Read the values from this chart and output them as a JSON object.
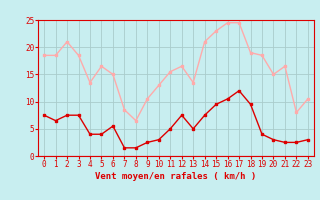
{
  "hours": [
    0,
    1,
    2,
    3,
    4,
    5,
    6,
    7,
    8,
    9,
    10,
    11,
    12,
    13,
    14,
    15,
    16,
    17,
    18,
    19,
    20,
    21,
    22,
    23
  ],
  "wind_avg": [
    7.5,
    6.5,
    7.5,
    7.5,
    4,
    4,
    5.5,
    1.5,
    1.5,
    2.5,
    3,
    5,
    7.5,
    5,
    7.5,
    9.5,
    10.5,
    12,
    9.5,
    4,
    3,
    2.5,
    2.5,
    3
  ],
  "wind_gust": [
    18.5,
    18.5,
    21,
    18.5,
    13.5,
    16.5,
    15,
    8.5,
    6.5,
    10.5,
    13,
    15.5,
    16.5,
    13.5,
    21,
    23,
    24.5,
    24.5,
    19,
    18.5,
    15,
    16.5,
    8,
    10.5
  ],
  "avg_color": "#dd0000",
  "gust_color": "#ffaaaa",
  "bg_color": "#c8eef0",
  "grid_color": "#aacccc",
  "xlabel": "Vent moyen/en rafales ( km/h )",
  "ylim": [
    0,
    25
  ],
  "yticks": [
    0,
    5,
    10,
    15,
    20,
    25
  ],
  "xticks": [
    0,
    1,
    2,
    3,
    4,
    5,
    6,
    7,
    8,
    9,
    10,
    11,
    12,
    13,
    14,
    15,
    16,
    17,
    18,
    19,
    20,
    21,
    22,
    23
  ],
  "xlabel_color": "#dd0000",
  "tick_color": "#dd0000",
  "axis_label_fontsize": 6.5,
  "tick_fontsize": 5.5,
  "line_width": 1.0,
  "marker_size": 2.0
}
